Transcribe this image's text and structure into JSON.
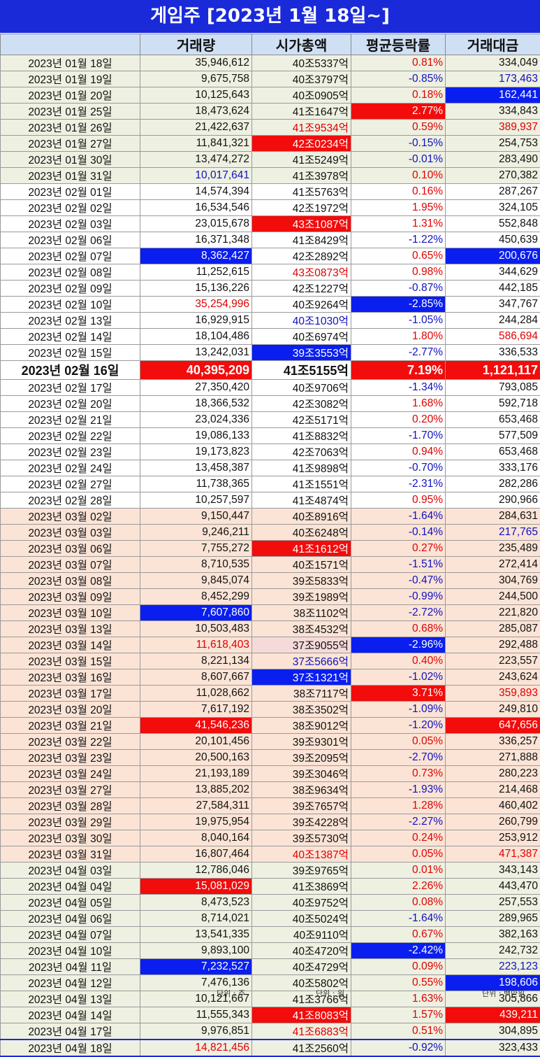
{
  "title": "게임주 [2023년 1월 18일~]",
  "headers": [
    "",
    "거래량",
    "시가총액",
    "평균등락률",
    "거래대금"
  ],
  "rows": [
    {
      "date": "2023년 01월 18일",
      "vol": "35,946,612",
      "cap": "40조5337억",
      "chg": "0.81%",
      "amt": "334,049",
      "group": "jan"
    },
    {
      "date": "2023년 01월 19일",
      "vol": "9,675,758",
      "cap": "40조3797억",
      "chg": "-0.85%",
      "amt": "173,463",
      "group": "jan",
      "amt_style": "txt-blue"
    },
    {
      "date": "2023년 01월 20일",
      "vol": "10,125,643",
      "cap": "40조0905억",
      "chg": "0.18%",
      "amt": "162,441",
      "group": "jan",
      "amt_style": "fill-blue"
    },
    {
      "date": "2023년 01월 25일",
      "vol": "18,473,624",
      "cap": "41조1647억",
      "chg": "2.77%",
      "amt": "334,843",
      "group": "jan",
      "chg_style": "fill-red"
    },
    {
      "date": "2023년 01월 26일",
      "vol": "21,422,637",
      "cap": "41조9534억",
      "chg": "0.59%",
      "amt": "389,937",
      "group": "jan",
      "cap_style": "txt-red",
      "amt_style": "txt-red"
    },
    {
      "date": "2023년 01월 27일",
      "vol": "11,841,321",
      "cap": "42조0234억",
      "chg": "-0.15%",
      "amt": "254,753",
      "group": "jan",
      "cap_style": "fill-red"
    },
    {
      "date": "2023년 01월 30일",
      "vol": "13,474,272",
      "cap": "41조5249억",
      "chg": "-0.01%",
      "amt": "283,490",
      "group": "jan"
    },
    {
      "date": "2023년 01월 31일",
      "vol": "10,017,641",
      "cap": "41조3978억",
      "chg": "0.10%",
      "amt": "270,382",
      "group": "jan",
      "vol_style": "txt-blue"
    },
    {
      "date": "2023년 02월 01일",
      "vol": "14,574,394",
      "cap": "41조5763억",
      "chg": "0.16%",
      "amt": "287,267",
      "group": "feb"
    },
    {
      "date": "2023년 02월 02일",
      "vol": "16,534,546",
      "cap": "42조1972억",
      "chg": "1.95%",
      "amt": "324,105",
      "group": "feb"
    },
    {
      "date": "2023년 02월 03일",
      "vol": "23,015,678",
      "cap": "43조1087억",
      "chg": "1.31%",
      "amt": "552,848",
      "group": "feb",
      "cap_style": "fill-red"
    },
    {
      "date": "2023년 02월 06일",
      "vol": "16,371,348",
      "cap": "41조8429억",
      "chg": "-1.22%",
      "amt": "450,639",
      "group": "feb"
    },
    {
      "date": "2023년 02월 07일",
      "vol": "8,362,427",
      "cap": "42조2892억",
      "chg": "0.65%",
      "amt": "200,676",
      "group": "feb",
      "vol_style": "fill-blue",
      "amt_style": "fill-blue"
    },
    {
      "date": "2023년 02월 08일",
      "vol": "11,252,615",
      "cap": "43조0873억",
      "chg": "0.98%",
      "amt": "344,629",
      "group": "feb",
      "cap_style": "txt-red"
    },
    {
      "date": "2023년 02월 09일",
      "vol": "15,136,226",
      "cap": "42조1227억",
      "chg": "-0.87%",
      "amt": "442,185",
      "group": "feb"
    },
    {
      "date": "2023년 02월 10일",
      "vol": "35,254,996",
      "cap": "40조9264억",
      "chg": "-2.85%",
      "amt": "347,767",
      "group": "feb",
      "vol_style": "txt-red",
      "chg_style": "fill-blue"
    },
    {
      "date": "2023년 02월 13일",
      "vol": "16,929,915",
      "cap": "40조1030억",
      "chg": "-1.05%",
      "amt": "244,284",
      "group": "feb",
      "cap_style": "txt-blue"
    },
    {
      "date": "2023년 02월 14일",
      "vol": "18,104,486",
      "cap": "40조6974억",
      "chg": "1.80%",
      "amt": "586,694",
      "group": "feb",
      "amt_style": "txt-red"
    },
    {
      "date": "2023년 02월 15일",
      "vol": "13,242,031",
      "cap": "39조3553억",
      "chg": "-2.77%",
      "amt": "336,533",
      "group": "feb",
      "cap_style": "fill-blue"
    },
    {
      "date": "2023년 02월 16일",
      "vol": "40,395,209",
      "cap": "41조5155억",
      "chg": "7.19%",
      "amt": "1,121,117",
      "group": "hl",
      "vol_style": "fill-red",
      "chg_style": "fill-red",
      "amt_style": "fill-red"
    },
    {
      "date": "2023년 02월 17일",
      "vol": "27,350,420",
      "cap": "40조9706억",
      "chg": "-1.34%",
      "amt": "793,085",
      "group": "feb"
    },
    {
      "date": "2023년 02월 20일",
      "vol": "18,366,532",
      "cap": "42조3082억",
      "chg": "1.68%",
      "amt": "592,718",
      "group": "feb"
    },
    {
      "date": "2023년 02월 21일",
      "vol": "23,024,336",
      "cap": "42조5171억",
      "chg": "0.20%",
      "amt": "653,468",
      "group": "feb"
    },
    {
      "date": "2023년 02월 22일",
      "vol": "19,086,133",
      "cap": "41조8832억",
      "chg": "-1.70%",
      "amt": "577,509",
      "group": "feb"
    },
    {
      "date": "2023년 02월 23일",
      "vol": "19,173,823",
      "cap": "42조7063억",
      "chg": "0.94%",
      "amt": "653,468",
      "group": "feb"
    },
    {
      "date": "2023년 02월 24일",
      "vol": "13,458,387",
      "cap": "41조9898억",
      "chg": "-0.70%",
      "amt": "333,176",
      "group": "feb"
    },
    {
      "date": "2023년 02월 27일",
      "vol": "11,738,365",
      "cap": "41조1551억",
      "chg": "-2.31%",
      "amt": "282,286",
      "group": "feb"
    },
    {
      "date": "2023년 02월 28일",
      "vol": "10,257,597",
      "cap": "41조4874억",
      "chg": "0.95%",
      "amt": "290,966",
      "group": "feb"
    },
    {
      "date": "2023년 03월 02일",
      "vol": "9,150,447",
      "cap": "40조8916억",
      "chg": "-1.64%",
      "amt": "284,631",
      "group": "mar"
    },
    {
      "date": "2023년 03월 03일",
      "vol": "9,246,211",
      "cap": "40조6248억",
      "chg": "-0.14%",
      "amt": "217,765",
      "group": "mar",
      "amt_style": "txt-blue"
    },
    {
      "date": "2023년 03월 06일",
      "vol": "7,755,272",
      "cap": "41조1612억",
      "chg": "0.27%",
      "amt": "235,489",
      "group": "mar",
      "cap_style": "fill-red"
    },
    {
      "date": "2023년 03월 07일",
      "vol": "8,710,535",
      "cap": "40조1571억",
      "chg": "-1.51%",
      "amt": "272,414",
      "group": "mar"
    },
    {
      "date": "2023년 03월 08일",
      "vol": "9,845,074",
      "cap": "39조5833억",
      "chg": "-0.47%",
      "amt": "304,769",
      "group": "mar"
    },
    {
      "date": "2023년 03월 09일",
      "vol": "8,452,299",
      "cap": "39조1989억",
      "chg": "-0.99%",
      "amt": "244,500",
      "group": "mar"
    },
    {
      "date": "2023년 03월 10일",
      "vol": "7,607,860",
      "cap": "38조1102억",
      "chg": "-2.72%",
      "amt": "221,820",
      "group": "mar",
      "vol_style": "fill-blue"
    },
    {
      "date": "2023년 03월 13일",
      "vol": "10,503,483",
      "cap": "38조4532억",
      "chg": "0.68%",
      "amt": "285,087",
      "group": "mar"
    },
    {
      "date": "2023년 03월 14일",
      "vol": "11,618,403",
      "cap": "37조9055억",
      "chg": "-2.96%",
      "amt": "292,488",
      "group": "mar",
      "vol_style": "txt-red",
      "cap_style": "tint",
      "chg_style": "fill-blue"
    },
    {
      "date": "2023년 03월 15일",
      "vol": "8,221,134",
      "cap": "37조5666억",
      "chg": "0.40%",
      "amt": "223,557",
      "group": "mar",
      "cap_style": "txt-blue"
    },
    {
      "date": "2023년 03월 16일",
      "vol": "8,607,667",
      "cap": "37조1321억",
      "chg": "-1.02%",
      "amt": "243,624",
      "group": "mar",
      "cap_style": "fill-blue"
    },
    {
      "date": "2023년 03월 17일",
      "vol": "11,028,662",
      "cap": "38조7117억",
      "chg": "3.71%",
      "amt": "359,893",
      "group": "mar",
      "chg_style": "fill-red",
      "amt_style": "txt-red"
    },
    {
      "date": "2023년 03월 20일",
      "vol": "7,617,192",
      "cap": "38조3502억",
      "chg": "-1.09%",
      "amt": "249,810",
      "group": "mar"
    },
    {
      "date": "2023년 03월 21일",
      "vol": "41,546,236",
      "cap": "38조9012억",
      "chg": "-1.20%",
      "amt": "647,656",
      "group": "mar",
      "vol_style": "fill-red",
      "amt_style": "fill-red"
    },
    {
      "date": "2023년 03월 22일",
      "vol": "20,101,456",
      "cap": "39조9301억",
      "chg": "0.05%",
      "amt": "336,257",
      "group": "mar"
    },
    {
      "date": "2023년 03월 23일",
      "vol": "20,500,163",
      "cap": "39조2095억",
      "chg": "-2.70%",
      "amt": "271,888",
      "group": "mar"
    },
    {
      "date": "2023년 03월 24일",
      "vol": "21,193,189",
      "cap": "39조3046억",
      "chg": "0.73%",
      "amt": "280,223",
      "group": "mar"
    },
    {
      "date": "2023년 03월 27일",
      "vol": "13,885,202",
      "cap": "38조9634억",
      "chg": "-1.93%",
      "amt": "214,468",
      "group": "mar"
    },
    {
      "date": "2023년 03월 28일",
      "vol": "27,584,311",
      "cap": "39조7657억",
      "chg": "1.28%",
      "amt": "460,402",
      "group": "mar"
    },
    {
      "date": "2023년 03월 29일",
      "vol": "19,975,954",
      "cap": "39조4228억",
      "chg": "-2.27%",
      "amt": "260,799",
      "group": "mar"
    },
    {
      "date": "2023년 03월 30일",
      "vol": "8,040,164",
      "cap": "39조5730억",
      "chg": "0.24%",
      "amt": "253,912",
      "group": "mar"
    },
    {
      "date": "2023년 03월 31일",
      "vol": "16,807,464",
      "cap": "40조1387억",
      "chg": "0.05%",
      "amt": "471,387",
      "group": "mar",
      "cap_style": "txt-red",
      "amt_style": "txt-red"
    },
    {
      "date": "2023년 04월 03일",
      "vol": "12,786,046",
      "cap": "39조9765억",
      "chg": "0.01%",
      "amt": "343,143",
      "group": "apr"
    },
    {
      "date": "2023년 04월 04일",
      "vol": "15,081,029",
      "cap": "41조3869억",
      "chg": "2.26%",
      "amt": "443,470",
      "group": "apr",
      "vol_style": "fill-red"
    },
    {
      "date": "2023년 04월 05일",
      "vol": "8,473,523",
      "cap": "40조9752억",
      "chg": "0.08%",
      "amt": "257,553",
      "group": "apr"
    },
    {
      "date": "2023년 04월 06일",
      "vol": "8,714,021",
      "cap": "40조5024억",
      "chg": "-1.64%",
      "amt": "289,965",
      "group": "apr"
    },
    {
      "date": "2023년 04월 07일",
      "vol": "13,541,335",
      "cap": "40조9110억",
      "chg": "0.67%",
      "amt": "382,163",
      "group": "apr"
    },
    {
      "date": "2023년 04월 10일",
      "vol": "9,893,100",
      "cap": "40조4720억",
      "chg": "-2.42%",
      "amt": "242,732",
      "group": "apr",
      "chg_style": "fill-blue"
    },
    {
      "date": "2023년 04월 11일",
      "vol": "7,232,527",
      "cap": "40조4729억",
      "chg": "0.09%",
      "amt": "223,123",
      "group": "apr",
      "vol_style": "fill-blue",
      "amt_style": "txt-blue"
    },
    {
      "date": "2023년 04월 12일",
      "vol": "7,476,136",
      "cap": "40조5802억",
      "chg": "0.55%",
      "amt": "198,606",
      "group": "apr",
      "amt_style": "fill-blue"
    },
    {
      "date": "2023년 04월 13일",
      "vol": "10,121,667",
      "cap": "41조3766억",
      "chg": "1.63%",
      "amt": "305,866",
      "group": "apr"
    },
    {
      "date": "2023년 04월 14일",
      "vol": "11,555,343",
      "cap": "41조8083억",
      "chg": "1.57%",
      "amt": "439,211",
      "group": "apr",
      "cap_style": "fill-red",
      "amt_style": "fill-red"
    },
    {
      "date": "2023년 04월 17일",
      "vol": "9,976,851",
      "cap": "41조6883억",
      "chg": "0.51%",
      "amt": "304,895",
      "group": "apr",
      "cap_style": "txt-red"
    },
    {
      "date": "2023년 04월 18일",
      "vol": "14,821,456",
      "cap": "41조2560억",
      "chg": "-0.92%",
      "amt": "323,433",
      "group": "last",
      "vol_style": "txt-red"
    }
  ],
  "units": {
    "vol": "단위 : 주",
    "cap": "단위 : 원",
    "amt": "단위 : 백만원"
  },
  "colors": {
    "title_bg": "#1a2ad9",
    "header_bg": "#cfe0f4",
    "highlight_red": "#f20c0c",
    "highlight_blue": "#0a1ef0",
    "jan_apr_bg": "#eef0e1",
    "mar_bg": "#fbe4d6"
  }
}
